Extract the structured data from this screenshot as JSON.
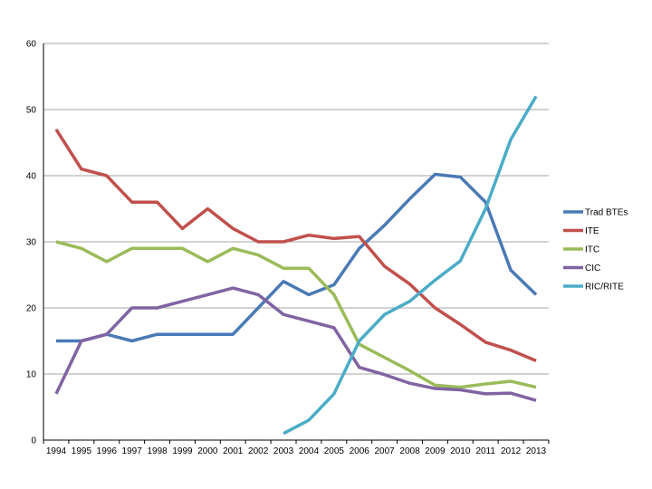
{
  "chart_data": {
    "type": "line",
    "title": "",
    "xlabel": "",
    "ylabel": "",
    "ylim": [
      0,
      60
    ],
    "yticks": [
      0,
      10,
      20,
      30,
      40,
      50,
      60
    ],
    "grid": true,
    "legend_position": "right",
    "x": [
      "1994",
      "1995",
      "1996",
      "1997",
      "1998",
      "1999",
      "2000",
      "2001",
      "2002",
      "2003",
      "2004",
      "2005",
      "2006",
      "2007",
      "2008",
      "2009",
      "2010",
      "2011",
      "2012",
      "2013"
    ],
    "series": [
      {
        "name": "Trad BTEs",
        "color": "#4a7ab5",
        "values": [
          15,
          15,
          16,
          15,
          16,
          16,
          16,
          16,
          20,
          24,
          22,
          23.5,
          29,
          32.5,
          36.5,
          40.2,
          39.8,
          36,
          25.7,
          22
        ]
      },
      {
        "name": "ITE",
        "color": "#c0504d",
        "values": [
          47,
          41,
          40,
          36,
          36,
          32,
          35,
          32,
          30,
          30,
          31,
          30.5,
          30.8,
          26.3,
          23.6,
          20,
          17.5,
          14.8,
          13.6,
          12
        ]
      },
      {
        "name": "ITC",
        "color": "#9bbb59",
        "values": [
          30,
          29,
          27,
          29,
          29,
          29,
          27,
          29,
          28,
          26,
          26,
          22,
          14.5,
          12.5,
          10.5,
          8.3,
          8,
          8.5,
          8.9,
          8
        ]
      },
      {
        "name": "CIC",
        "color": "#8064a2",
        "values": [
          7,
          15,
          16,
          20,
          20,
          21,
          22,
          23,
          22,
          19,
          18,
          17,
          11,
          9.9,
          8.6,
          7.8,
          7.6,
          7,
          7.1,
          6
        ]
      },
      {
        "name": "RIC/RITE",
        "color": "#4bacc6",
        "values": [
          null,
          null,
          null,
          null,
          null,
          null,
          null,
          null,
          null,
          1,
          3,
          7,
          15,
          19,
          21,
          24.2,
          27.1,
          35,
          45.5,
          52
        ]
      }
    ]
  }
}
